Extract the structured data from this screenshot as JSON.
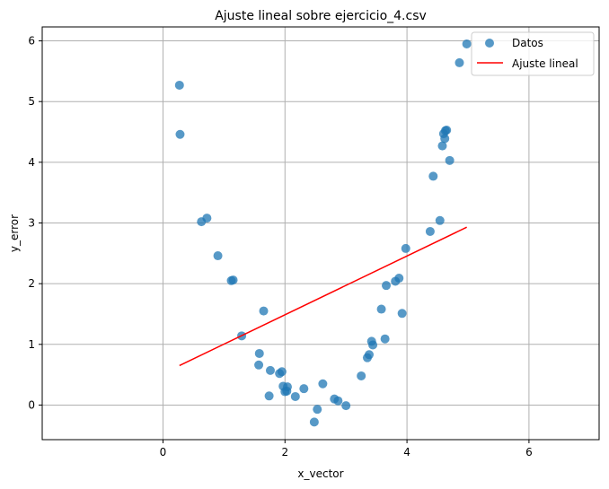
{
  "colors": {
    "scatter": "#1f77b4",
    "fit_line": "#ff0000",
    "grid": "#b0b0b0",
    "axes": "#000000"
  },
  "chart_data": {
    "type": "scatter",
    "title": "Ajuste lineal sobre ejercicio_4.csv",
    "xlabel": "x_vector",
    "ylabel": "y_error",
    "xlim": [
      -1.98,
      7.15
    ],
    "ylim": [
      -0.57,
      6.23
    ],
    "xticks": [
      0,
      2,
      4,
      6
    ],
    "yticks": [
      0,
      1,
      2,
      3,
      4,
      5,
      6
    ],
    "grid": true,
    "legend_position": "top-right",
    "series": [
      {
        "name": "Datos",
        "kind": "scatter",
        "points": [
          [
            0.27,
            5.27
          ],
          [
            0.28,
            4.46
          ],
          [
            0.63,
            3.02
          ],
          [
            0.72,
            3.08
          ],
          [
            0.9,
            2.46
          ],
          [
            1.12,
            2.05
          ],
          [
            1.15,
            2.06
          ],
          [
            1.29,
            1.14
          ],
          [
            1.58,
            0.85
          ],
          [
            1.57,
            0.66
          ],
          [
            1.65,
            1.55
          ],
          [
            1.74,
            0.15
          ],
          [
            1.76,
            0.57
          ],
          [
            1.91,
            0.52
          ],
          [
            1.95,
            0.55
          ],
          [
            1.97,
            0.31
          ],
          [
            2.0,
            0.22
          ],
          [
            2.04,
            0.3
          ],
          [
            2.03,
            0.23
          ],
          [
            2.17,
            0.14
          ],
          [
            2.31,
            0.27
          ],
          [
            2.48,
            -0.28
          ],
          [
            2.53,
            -0.07
          ],
          [
            2.62,
            0.35
          ],
          [
            2.81,
            0.1
          ],
          [
            2.87,
            0.07
          ],
          [
            3.0,
            -0.01
          ],
          [
            3.25,
            0.48
          ],
          [
            3.35,
            0.78
          ],
          [
            3.38,
            0.83
          ],
          [
            3.42,
            1.05
          ],
          [
            3.44,
            0.99
          ],
          [
            3.58,
            1.58
          ],
          [
            3.64,
            1.09
          ],
          [
            3.66,
            1.97
          ],
          [
            3.81,
            2.04
          ],
          [
            3.87,
            2.09
          ],
          [
            3.92,
            1.51
          ],
          [
            3.98,
            2.58
          ],
          [
            4.38,
            2.86
          ],
          [
            4.43,
            3.77
          ],
          [
            4.54,
            3.04
          ],
          [
            4.58,
            4.27
          ],
          [
            4.6,
            4.47
          ],
          [
            4.63,
            4.52
          ],
          [
            4.65,
            4.53
          ],
          [
            4.62,
            4.39
          ],
          [
            4.7,
            4.03
          ],
          [
            4.86,
            5.64
          ],
          [
            4.98,
            5.95
          ]
        ]
      },
      {
        "name": "Ajuste lineal",
        "kind": "line",
        "points": [
          [
            0.27,
            0.65
          ],
          [
            4.98,
            2.93
          ]
        ]
      }
    ]
  }
}
